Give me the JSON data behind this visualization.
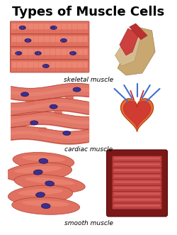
{
  "title": "Types of Muscle Cells",
  "title_fontsize": 13,
  "title_fontweight": "bold",
  "background_color": "#ffffff",
  "labels": [
    "skeletal muscle",
    "cardiac muscle",
    "smooth muscle"
  ],
  "label_fontsize": 6.5,
  "nucleus_color": "#3a3090",
  "nucleus_edge": "#1a1060",
  "fiber_color_light": "#f0907a",
  "fiber_color_mid": "#e07060",
  "fiber_color_dark": "#c05040",
  "fiber_edge": "#b04030",
  "stripe_color": "#d06050",
  "arm_tan": "#d4b88a",
  "arm_red": "#c04040",
  "heart_red": "#cc3030",
  "heart_orange": "#e06020",
  "heart_blue": "#4070cc",
  "gut_dark": "#7a1818",
  "gut_mid": "#c04040",
  "gut_light": "#e07070"
}
